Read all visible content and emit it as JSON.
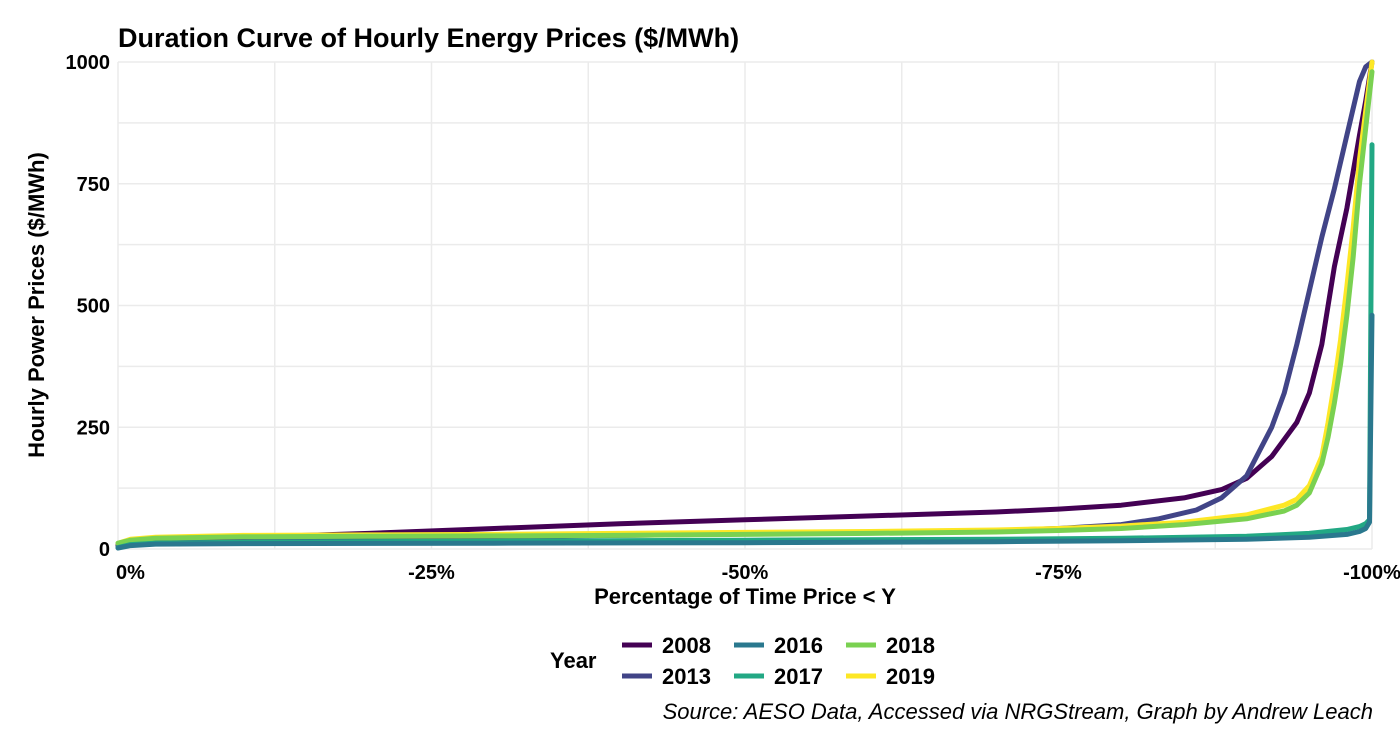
{
  "chart_data": {
    "type": "line",
    "title": "Duration Curve of Hourly Energy Prices ($/MWh)",
    "xlabel": "Percentage of Time Price < Y",
    "ylabel": "Hourly Power Prices ($/MWh)",
    "xlim": [
      0,
      100
    ],
    "ylim": [
      0,
      1000
    ],
    "x_ticks": [
      {
        "value": 0,
        "label": "0%"
      },
      {
        "value": 25,
        "label": "-25%"
      },
      {
        "value": 50,
        "label": "-50%"
      },
      {
        "value": 75,
        "label": "-75%"
      },
      {
        "value": 100,
        "label": "-100%"
      }
    ],
    "y_ticks": [
      {
        "value": 0,
        "label": "0"
      },
      {
        "value": 250,
        "label": "250"
      },
      {
        "value": 500,
        "label": "500"
      },
      {
        "value": 750,
        "label": "750"
      },
      {
        "value": 1000,
        "label": "1000"
      }
    ],
    "grid": true,
    "legend": {
      "title": "Year",
      "position": "bottom"
    },
    "caption": "Source: AESO Data, Accessed via NRGStream, Graph by Andrew Leach",
    "series": [
      {
        "name": "2008",
        "color": "#440154",
        "x": [
          0,
          1,
          3,
          10,
          20,
          30,
          40,
          50,
          60,
          70,
          75,
          80,
          85,
          88,
          90,
          92,
          94,
          95,
          96,
          97,
          98,
          99,
          99.5,
          100
        ],
        "y": [
          8,
          12,
          16,
          24,
          32,
          42,
          52,
          60,
          68,
          76,
          82,
          90,
          105,
          122,
          145,
          190,
          260,
          320,
          420,
          580,
          700,
          850,
          920,
          1000
        ]
      },
      {
        "name": "2013",
        "color": "#414487",
        "x": [
          0,
          1,
          3,
          10,
          20,
          30,
          40,
          50,
          60,
          70,
          75,
          80,
          83,
          86,
          88,
          90,
          91,
          92,
          93,
          94,
          95,
          96,
          97,
          98,
          99,
          99.5,
          100
        ],
        "y": [
          5,
          10,
          13,
          18,
          21,
          25,
          28,
          31,
          34,
          38,
          42,
          50,
          62,
          80,
          105,
          150,
          200,
          250,
          320,
          420,
          530,
          640,
          740,
          850,
          960,
          990,
          1000
        ]
      },
      {
        "name": "2016",
        "color": "#2A788E",
        "x": [
          0,
          1,
          3,
          10,
          30,
          50,
          70,
          80,
          90,
          95,
          98,
          99,
          99.5,
          99.8,
          100
        ],
        "y": [
          2,
          7,
          10,
          11,
          12,
          13,
          15,
          17,
          20,
          24,
          30,
          36,
          42,
          55,
          480
        ]
      },
      {
        "name": "2017",
        "color": "#22A884",
        "x": [
          0,
          1,
          3,
          10,
          30,
          50,
          70,
          80,
          90,
          95,
          98,
          99,
          99.5,
          99.8,
          100
        ],
        "y": [
          3,
          9,
          12,
          14,
          16,
          18,
          20,
          22,
          26,
          32,
          40,
          46,
          52,
          60,
          830
        ]
      },
      {
        "name": "2018",
        "color": "#7AD151",
        "x": [
          0,
          1,
          3,
          10,
          20,
          30,
          40,
          50,
          60,
          70,
          75,
          80,
          85,
          90,
          93,
          94,
          95,
          96,
          96.5,
          97,
          97.5,
          98,
          98.5,
          99,
          100
        ],
        "y": [
          12,
          18,
          22,
          25,
          26,
          27,
          28,
          30,
          32,
          35,
          38,
          42,
          50,
          62,
          78,
          90,
          115,
          175,
          230,
          300,
          380,
          480,
          600,
          750,
          980
        ]
      },
      {
        "name": "2019",
        "color": "#FDE725",
        "x": [
          0,
          1,
          3,
          10,
          20,
          30,
          40,
          50,
          60,
          70,
          75,
          80,
          85,
          90,
          93,
          94,
          95,
          96,
          96.5,
          97,
          97.5,
          98,
          98.5,
          99,
          100
        ],
        "y": [
          12,
          20,
          24,
          28,
          29,
          30,
          32,
          34,
          36,
          39,
          42,
          47,
          55,
          70,
          90,
          102,
          130,
          190,
          260,
          340,
          430,
          540,
          660,
          800,
          1000
        ]
      }
    ]
  }
}
